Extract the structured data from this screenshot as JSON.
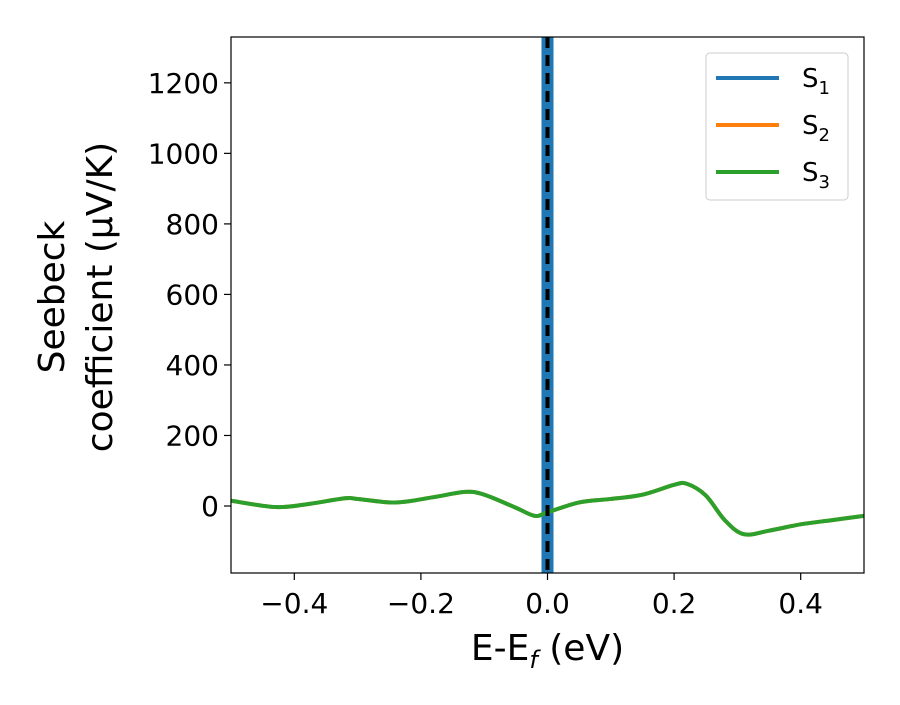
{
  "chart_data": {
    "type": "line",
    "xlabel": "E-E",
    "xlabel_sub": "f",
    "xlabel_unit": " (eV)",
    "ylabel_line1": "Seebeck",
    "ylabel_line2": "coefficient  (μV/K)",
    "xlim": [
      -0.5,
      0.5
    ],
    "ylim": [
      -190,
      1330
    ],
    "xticks": [
      -0.4,
      -0.2,
      0.0,
      0.2,
      0.4
    ],
    "xtick_labels": [
      "−0.4",
      "−0.2",
      "0.0",
      "0.2",
      "0.4"
    ],
    "yticks": [
      0,
      200,
      400,
      600,
      800,
      1000,
      1200
    ],
    "ytick_labels": [
      "0",
      "200",
      "400",
      "600",
      "800",
      "1000",
      "1200"
    ],
    "grid": false,
    "legend_position": "top-right",
    "vertical_line": {
      "x": 0.0,
      "style": "dashed",
      "color": "#000000"
    },
    "series": [
      {
        "name": "S",
        "sub": "1",
        "color": "#1f77b4",
        "x": [
          0.0,
          0.0
        ],
        "y": [
          -190,
          1330
        ]
      },
      {
        "name": "S",
        "sub": "2",
        "color": "#ff7f0e",
        "x": [
          -0.5,
          -0.43,
          -0.38,
          -0.32,
          -0.3,
          -0.24,
          -0.18,
          -0.13,
          -0.1,
          -0.05,
          -0.02,
          0.0,
          0.05,
          0.1,
          0.15,
          0.2,
          0.22,
          0.25,
          0.28,
          0.31,
          0.35,
          0.4,
          0.45,
          0.5
        ],
        "y": [
          15,
          -3,
          5,
          22,
          20,
          10,
          25,
          40,
          32,
          -5,
          -28,
          -18,
          10,
          20,
          32,
          60,
          63,
          30,
          -40,
          -80,
          -70,
          -52,
          -40,
          -28
        ]
      },
      {
        "name": "S",
        "sub": "3",
        "color": "#2ca02c",
        "x": [
          -0.5,
          -0.43,
          -0.38,
          -0.32,
          -0.3,
          -0.24,
          -0.18,
          -0.13,
          -0.1,
          -0.05,
          -0.02,
          0.0,
          0.05,
          0.1,
          0.15,
          0.2,
          0.22,
          0.25,
          0.28,
          0.31,
          0.35,
          0.4,
          0.45,
          0.5
        ],
        "y": [
          15,
          -3,
          5,
          22,
          20,
          10,
          25,
          40,
          32,
          -5,
          -28,
          -18,
          10,
          20,
          32,
          60,
          63,
          30,
          -40,
          -80,
          -70,
          -52,
          -40,
          -28
        ]
      }
    ]
  }
}
